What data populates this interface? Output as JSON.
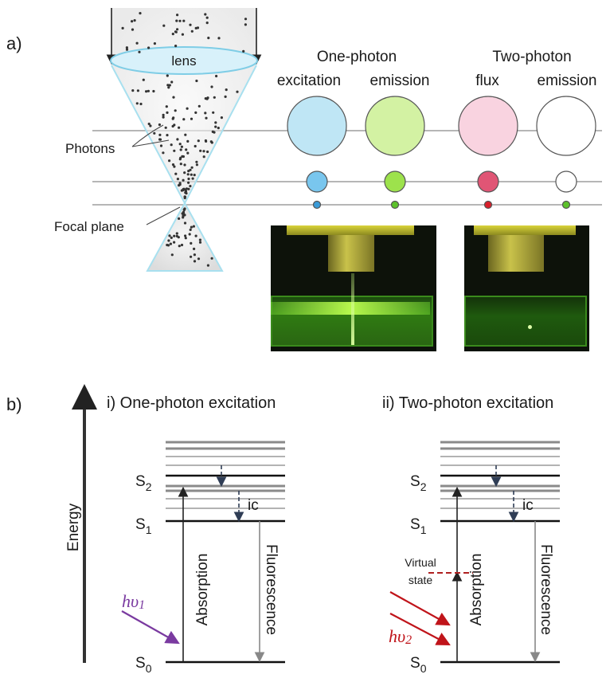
{
  "panel_a": {
    "label": "a)",
    "lens_label": "lens",
    "photons_label": "Photons",
    "focal_plane_label": "Focal plane",
    "one_photon": {
      "title": "One-photon",
      "col1": "excitation",
      "col2": "emission"
    },
    "two_photon": {
      "title": "Two-photon",
      "col1": "flux",
      "col2": "emission"
    },
    "colors": {
      "excitation": "#bfe6f5",
      "emission_green": "#c9f08f",
      "flux_pink": "#f6c9d8",
      "emission_white": "#ffffff",
      "small_blue": "#79c6ee",
      "small_green": "#9de24c",
      "small_red": "#e05575"
    }
  },
  "panel_b": {
    "label": "b)",
    "energy_label": "Energy",
    "one": {
      "title": "i) One-photon excitation",
      "s2": "S",
      "s2_sub": "2",
      "s1": "S",
      "s1_sub": "1",
      "s0": "S",
      "s0_sub": "0",
      "ic": "ic",
      "absorption": "Absorption",
      "fluorescence": "Fluorescence",
      "hv": "hυ",
      "hv_sub": "1",
      "hv_color": "#7a3aa0"
    },
    "two": {
      "title": "ii) Two-photon excitation",
      "s2": "S",
      "s2_sub": "2",
      "s1": "S",
      "s1_sub": "1",
      "s0": "S",
      "s0_sub": "0",
      "ic": "ic",
      "absorption": "Absorption",
      "fluorescence": "Fluorescence",
      "virtual_1": "Virtual",
      "virtual_2": "state",
      "hv": "hυ",
      "hv_sub": "2",
      "hv_color": "#c0141a"
    }
  }
}
